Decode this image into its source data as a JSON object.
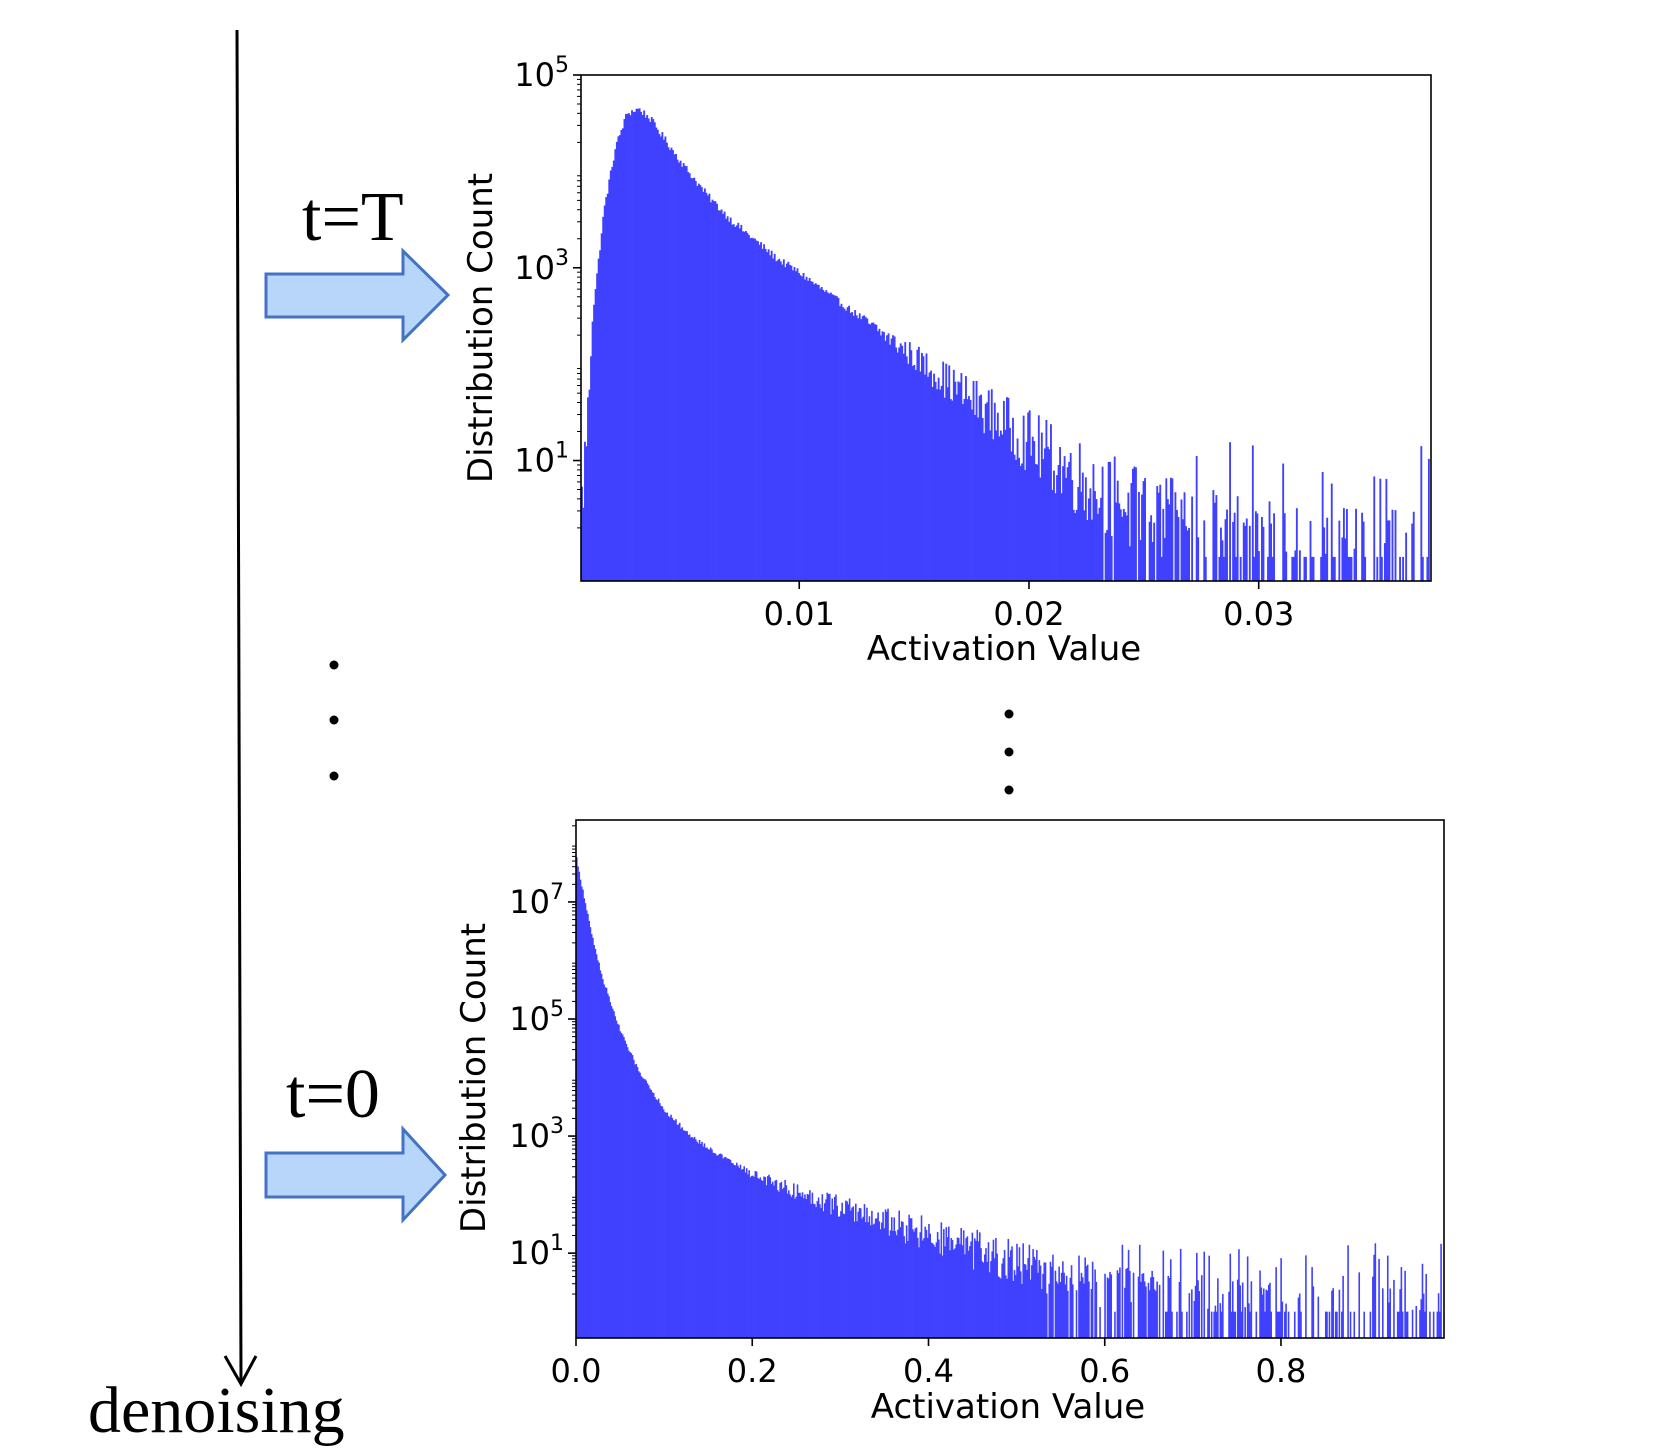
{
  "figure": {
    "step_top_label": "t=T",
    "step_bottom_label": "t=0",
    "timeline_label": "denoising",
    "colors": {
      "bar": "#4040ff",
      "arrow_fill": "#b8d6fa",
      "arrow_stroke": "#4472c4",
      "text": "#000000"
    }
  },
  "chart_data": [
    {
      "type": "bar",
      "title": "",
      "xlabel": "Activation Value",
      "ylabel": "Distribution Count",
      "yscale": "log",
      "xlim": [
        0.0005,
        0.0375
      ],
      "ylim_log10": [
        -0.25,
        5.0
      ],
      "xticks": [
        0.01,
        0.02,
        0.03
      ],
      "xtick_labels": [
        "0.01",
        "0.02",
        "0.03"
      ],
      "yticks_log10": [
        1,
        3,
        5
      ],
      "ytick_labels": [
        {
          "base": "10",
          "exp": "1"
        },
        {
          "base": "10",
          "exp": "3"
        },
        {
          "base": "10",
          "exp": "5"
        }
      ],
      "distribution": {
        "shape": "right-skewed histogram, peak near activation 0.003, tail to ~0.036",
        "envelope_x": [
          0.0005,
          0.0008,
          0.001,
          0.0015,
          0.002,
          0.0025,
          0.003,
          0.0035,
          0.004,
          0.005,
          0.006,
          0.007,
          0.008,
          0.009,
          0.01,
          0.012,
          0.014,
          0.016,
          0.018,
          0.02,
          0.022,
          0.024,
          0.026,
          0.028,
          0.03,
          0.032,
          0.034,
          0.036,
          0.0375
        ],
        "envelope_log10": [
          0.4,
          1.5,
          2.5,
          3.6,
          4.25,
          4.6,
          4.65,
          4.55,
          4.38,
          4.05,
          3.75,
          3.5,
          3.3,
          3.1,
          2.95,
          2.6,
          2.25,
          1.9,
          1.55,
          1.2,
          0.85,
          0.55,
          0.3,
          0.1,
          0.0,
          -0.05,
          -0.1,
          -0.1,
          -0.1
        ]
      }
    },
    {
      "type": "bar",
      "title": "",
      "xlabel": "Activation Value",
      "ylabel": "Distribution Count",
      "yscale": "log",
      "xlim": [
        0.0,
        0.985
      ],
      "ylim_log10": [
        -0.45,
        8.4
      ],
      "xticks": [
        0.0,
        0.2,
        0.4,
        0.6,
        0.8
      ],
      "xtick_labels": [
        "0.0",
        "0.2",
        "0.4",
        "0.6",
        "0.8"
      ],
      "yticks_log10": [
        1,
        3,
        5,
        7
      ],
      "ytick_labels": [
        {
          "base": "10",
          "exp": "1"
        },
        {
          "base": "10",
          "exp": "3"
        },
        {
          "base": "10",
          "exp": "5"
        },
        {
          "base": "10",
          "exp": "7"
        }
      ],
      "distribution": {
        "shape": "monotonically decreasing heavy-tailed histogram starting near 10^7.8 at 0",
        "envelope_x": [
          0.0,
          0.005,
          0.01,
          0.02,
          0.03,
          0.05,
          0.07,
          0.1,
          0.13,
          0.16,
          0.2,
          0.25,
          0.3,
          0.35,
          0.4,
          0.45,
          0.5,
          0.55,
          0.6,
          0.65,
          0.7,
          0.75,
          0.8,
          0.85,
          0.9,
          0.95,
          0.985
        ],
        "envelope_log10": [
          7.8,
          7.4,
          7.0,
          6.3,
          5.7,
          4.8,
          4.15,
          3.45,
          3.0,
          2.7,
          2.35,
          2.05,
          1.8,
          1.55,
          1.3,
          1.05,
          0.8,
          0.55,
          0.35,
          0.2,
          0.05,
          -0.05,
          -0.1,
          -0.15,
          -0.2,
          -0.2,
          -0.2
        ]
      }
    }
  ]
}
